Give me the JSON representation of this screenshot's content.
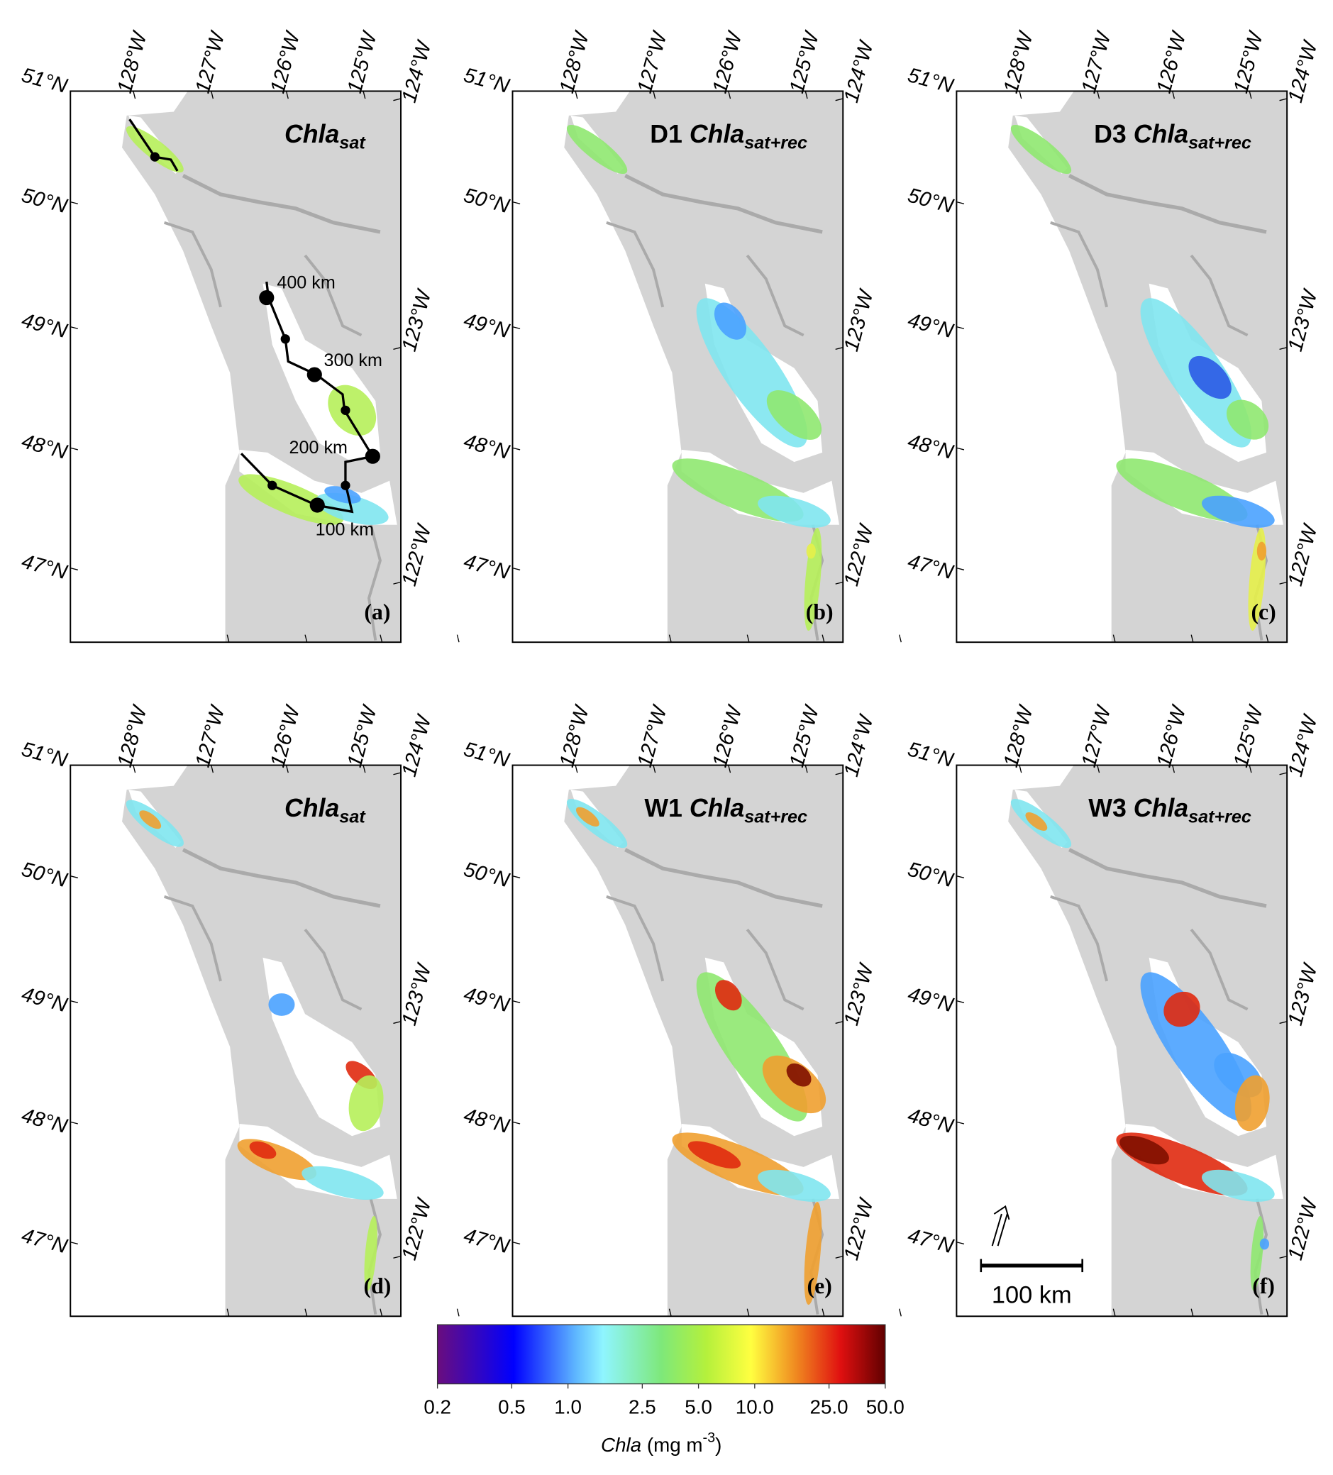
{
  "panels": [
    {
      "title": {
        "var": "Chla",
        "sub": "sat"
      },
      "label": "(a)",
      "distance_labels": [
        "400 km",
        "300 km",
        "200 km",
        "100 km"
      ]
    },
    {
      "title": {
        "prefix": "D1",
        "var": "Chla",
        "sub": "sat+rec"
      },
      "label": "(b)"
    },
    {
      "title": {
        "prefix": "D3",
        "var": "Chla",
        "sub": "sat+rec"
      },
      "label": "(c)"
    },
    {
      "title": {
        "var": "Chla",
        "sub": "sat"
      },
      "label": "(d)"
    },
    {
      "title": {
        "prefix": "W1",
        "var": "Chla",
        "sub": "sat+rec"
      },
      "label": "(e)"
    },
    {
      "title": {
        "prefix": "W3",
        "var": "Chla",
        "sub": "sat+rec"
      },
      "label": "(f)",
      "scale_bar": "100 km"
    }
  ],
  "lat_labels": [
    "51°N",
    "50°N",
    "49°N",
    "48°N",
    "47°N"
  ],
  "lon_labels_top": [
    "128°W",
    "127°W",
    "126°W",
    "125°W"
  ],
  "lon_labels_right": [
    "124°W",
    "123°W",
    "122°W"
  ],
  "colorbar": {
    "range": [
      0.2,
      50
    ],
    "log": true,
    "ticks": [
      0.2,
      0.5,
      {
        "value": 1,
        "label": "1.0"
      },
      2.5,
      {
        "value": 5,
        "label": "5.0"
      },
      {
        "value": 10,
        "label": "10.0"
      },
      {
        "value": 25,
        "label": "25.0"
      },
      {
        "value": 50,
        "label": "50.0"
      }
    ],
    "label_var": "Chla",
    "label_unit": "(mg m",
    "label_exp": "-3",
    "label_end": ")"
  }
}
